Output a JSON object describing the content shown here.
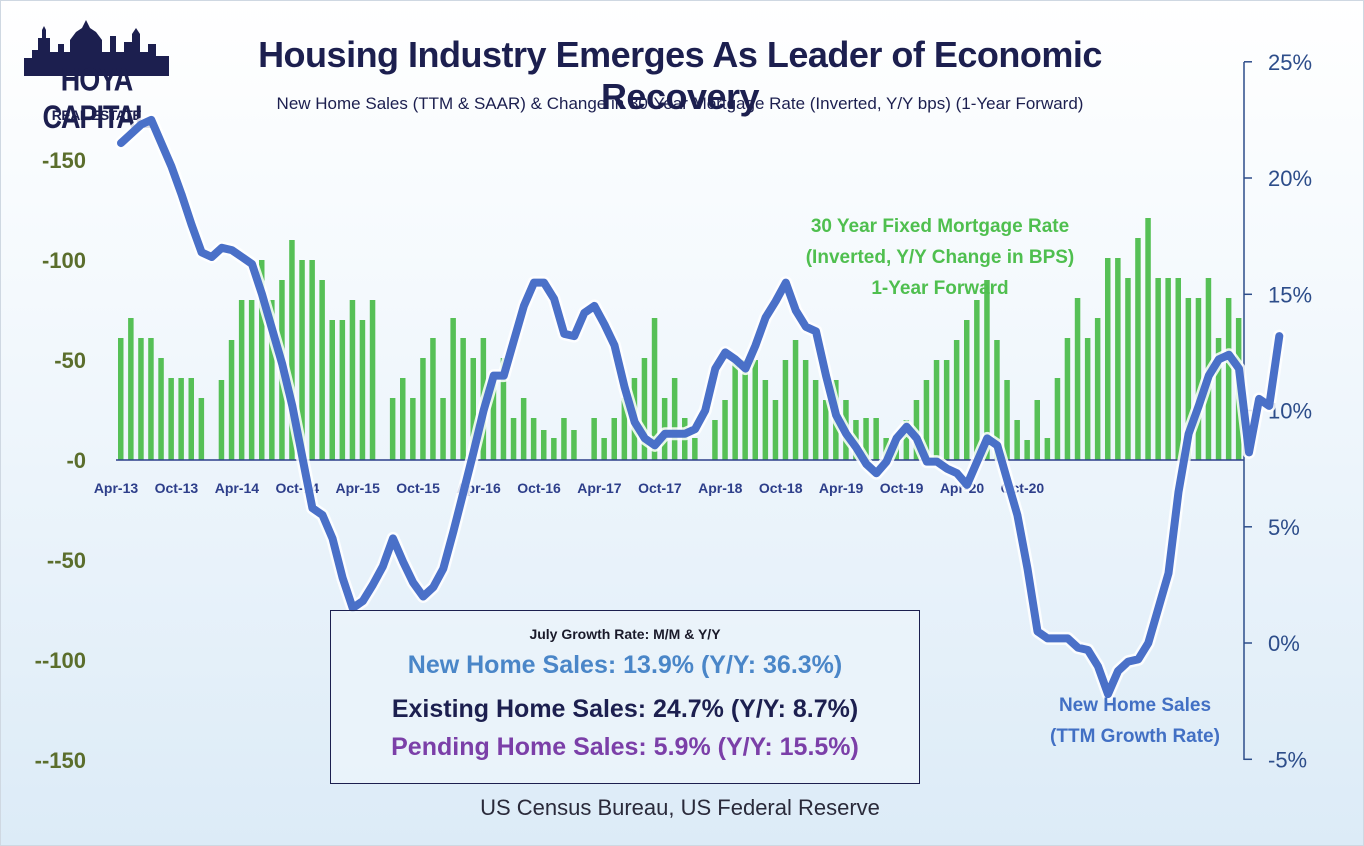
{
  "logo": {
    "line1": "HOYA CAPITAL",
    "line2": "REAL ESTATE"
  },
  "title": "Housing Industry Emerges As Leader of Economic Recovery",
  "subtitle": "New Home Sales (TTM & SAAR) & Change in 30-Year Mortgage Rate (Inverted, Y/Y bps) (1-Year Forward)",
  "source": "US Census Bureau, US Federal Reserve",
  "annotation_mortgage": [
    "30 Year Fixed Mortgage Rate",
    "(Inverted, Y/Y Change in BPS)",
    "1-Year Forward"
  ],
  "annotation_sales": [
    "New Home Sales",
    "(TTM Growth Rate)"
  ],
  "growth_box": {
    "heading": "July Growth Rate: M/M & Y/Y",
    "line1": "New Home Sales: 13.9% (Y/Y: 36.3%)",
    "line2": "Existing Home Sales: 24.7% (Y/Y: 8.7%)",
    "line3": "Pending Home Sales: 5.9% (Y/Y: 15.5%)"
  },
  "colors": {
    "bars": "#56c056",
    "line": "#4a70c8",
    "title": "#1c1f4f",
    "left_axis": "#5b6e2c",
    "right_axis": "#2d4d8a"
  },
  "chart_data": {
    "type": "bar+line",
    "x_labels": [
      "Apr-13",
      "Oct-13",
      "Apr-14",
      "Oct-14",
      "Apr-15",
      "Oct-15",
      "Apr-16",
      "Oct-16",
      "Apr-17",
      "Oct-17",
      "Apr-18",
      "Oct-18",
      "Apr-19",
      "Oct-19",
      "Apr-20",
      "Oct-20"
    ],
    "x_start": "Apr-13",
    "left_axis": {
      "ticks": [
        "-150",
        "-100",
        "-50",
        "-0",
        "--50",
        "--100",
        "--150"
      ],
      "values": [
        -150,
        -100,
        -50,
        0,
        50,
        100,
        150
      ],
      "inverted": true,
      "range": [
        -150,
        150
      ]
    },
    "right_axis": {
      "ticks": [
        "25%",
        "20%",
        "15%",
        "10%",
        "5%",
        "0%",
        "-5%"
      ],
      "values": [
        25,
        20,
        15,
        10,
        5,
        0,
        -5
      ],
      "range": [
        -5,
        25
      ]
    },
    "series": [
      {
        "name": "30 Year Fixed Mortgage Rate (Inverted, Y/Y Change in BPS) 1-Year Forward",
        "kind": "bar",
        "axis": "left",
        "values": [
          -61,
          -71,
          -61,
          -61,
          -51,
          -41,
          -41,
          -41,
          -31,
          0,
          -40,
          -60,
          -80,
          -80,
          -100,
          -80,
          -90,
          -110,
          -100,
          -100,
          -90,
          -70,
          -70,
          -80,
          -70,
          -80,
          0,
          -31,
          -41,
          -31,
          -51,
          -61,
          -31,
          -71,
          -61,
          -51,
          -61,
          -41,
          -51,
          -21,
          -31,
          -21,
          -15,
          -11,
          -21,
          -15,
          0,
          -21,
          -11,
          -21,
          -31,
          -41,
          -51,
          -71,
          -31,
          -41,
          -21,
          -11,
          0,
          -20,
          -30,
          -50,
          -50,
          -50,
          -40,
          -30,
          -50,
          -60,
          -50,
          -40,
          -30,
          -40,
          -30,
          -20,
          -21,
          -21,
          -11,
          -11,
          -20,
          -30,
          -40,
          -50,
          -50,
          -60,
          -70,
          -80,
          -90,
          -60,
          -40,
          -20,
          -10,
          -30,
          -11,
          -41,
          -61,
          -81,
          -61,
          -71,
          -101,
          -101,
          -91,
          -111,
          -121,
          -91,
          -91,
          -91,
          -81,
          -81,
          -91,
          -61,
          -81,
          -71
        ]
      },
      {
        "name": "New Home Sales (TTM Growth Rate)",
        "kind": "line",
        "axis": "right",
        "unit": "%",
        "values": [
          21.5,
          21.9,
          22.3,
          22.5,
          21.5,
          20.5,
          19.3,
          18.0,
          16.8,
          16.6,
          17.0,
          16.9,
          16.6,
          16.3,
          15.0,
          13.5,
          12.0,
          10.2,
          8.0,
          5.8,
          5.5,
          4.5,
          2.8,
          1.5,
          1.8,
          2.5,
          3.3,
          4.5,
          3.5,
          2.6,
          2.0,
          2.4,
          3.2,
          4.8,
          6.5,
          8.2,
          10.0,
          11.5,
          11.5,
          13.0,
          14.5,
          15.5,
          15.5,
          14.8,
          13.3,
          13.2,
          14.2,
          14.5,
          13.7,
          12.8,
          11.0,
          9.5,
          8.8,
          8.5,
          9.0,
          9.0,
          9.0,
          9.2,
          10.0,
          11.8,
          12.5,
          12.2,
          11.8,
          12.8,
          14.0,
          14.7,
          15.5,
          14.3,
          13.6,
          13.4,
          11.5,
          9.8,
          9.0,
          8.4,
          7.7,
          7.3,
          7.8,
          8.8,
          9.3,
          8.8,
          7.8,
          7.8,
          7.5,
          7.3,
          6.8,
          7.8,
          8.8,
          8.5,
          7.0,
          5.5,
          3.2,
          0.5,
          0.2,
          0.2,
          0.2,
          -0.2,
          -0.3,
          -1.0,
          -2.2,
          -1.2,
          -0.8,
          -0.7,
          0.0,
          1.5,
          3.0,
          6.5,
          9.0,
          10.2,
          11.5,
          12.2,
          12.4,
          11.8,
          8.2,
          10.5,
          10.2,
          13.2
        ]
      }
    ],
    "grid": false,
    "legend": "none"
  }
}
